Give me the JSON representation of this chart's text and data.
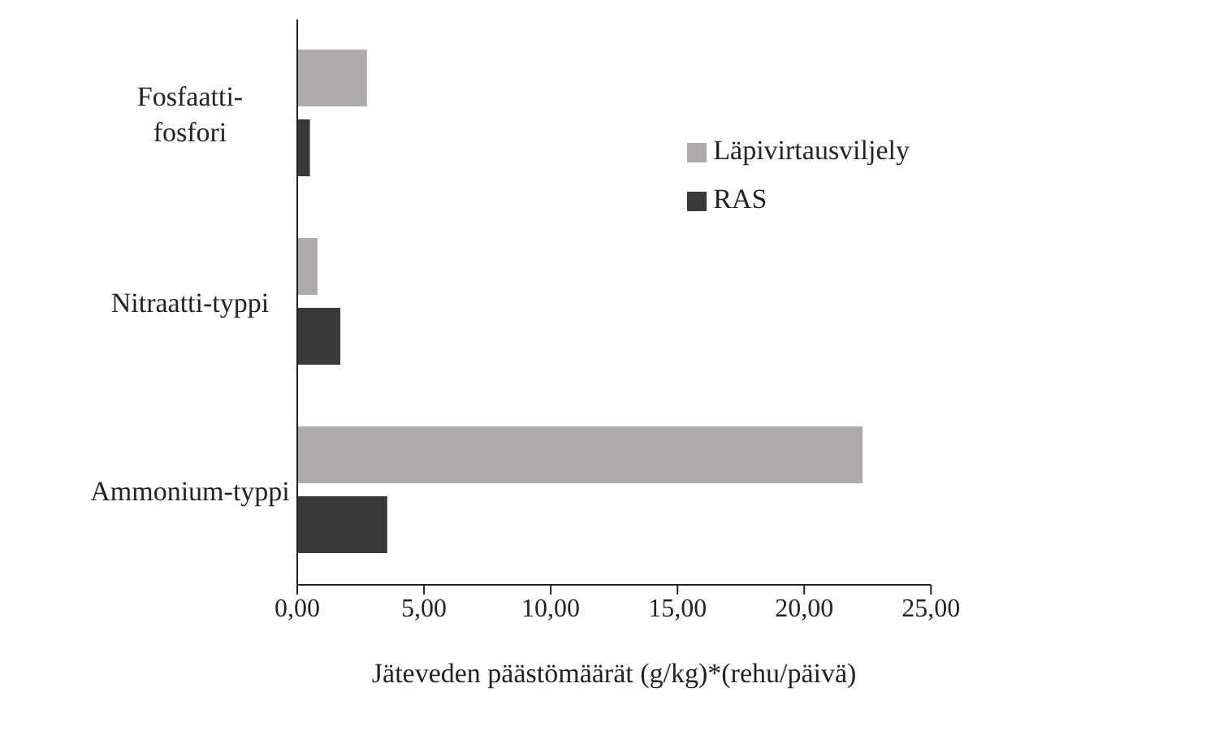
{
  "chart_data": {
    "type": "bar",
    "orientation": "horizontal",
    "xlabel": "Jäteveden päästömäärät (g/kg)*(rehu/päivä)",
    "categories": [
      "Fosfaatti-fosfori",
      "Nitraatti-typpi",
      "Ammonium-typpi"
    ],
    "series": [
      {
        "name": "Läpivirtausviljely",
        "color": "#aeaaaa",
        "values": [
          2.75,
          0.8,
          22.3
        ]
      },
      {
        "name": "RAS",
        "color": "#3b3838",
        "values": [
          0.5,
          1.7,
          3.55
        ]
      }
    ],
    "xlim": [
      0,
      25
    ],
    "xticks": [
      {
        "value": 0,
        "label": "0,00"
      },
      {
        "value": 5,
        "label": "5,00"
      },
      {
        "value": 10,
        "label": "10,00"
      },
      {
        "value": 15,
        "label": "15,00"
      },
      {
        "value": 20,
        "label": "20,00"
      },
      {
        "value": 25,
        "label": "25,00"
      }
    ],
    "grid": false,
    "legend": "right"
  }
}
